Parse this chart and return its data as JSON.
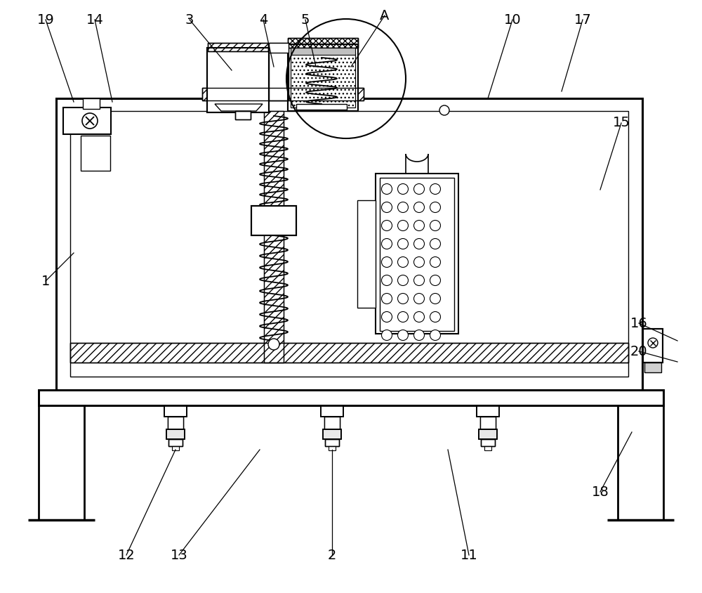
{
  "fig_width": 10.0,
  "fig_height": 8.44,
  "bg_color": "#ffffff",
  "annotations": [
    [
      "19",
      65,
      28,
      105,
      145
    ],
    [
      "14",
      135,
      28,
      160,
      145
    ],
    [
      "3",
      270,
      28,
      330,
      100
    ],
    [
      "4",
      375,
      28,
      390,
      95
    ],
    [
      "5",
      435,
      28,
      450,
      95
    ],
    [
      "A",
      548,
      22,
      500,
      95
    ],
    [
      "10",
      730,
      28,
      695,
      140
    ],
    [
      "17",
      830,
      28,
      800,
      130
    ],
    [
      "15",
      885,
      175,
      855,
      270
    ],
    [
      "1",
      65,
      400,
      105,
      360
    ],
    [
      "16",
      910,
      460,
      965,
      485
    ],
    [
      "20",
      910,
      500,
      965,
      515
    ],
    [
      "18",
      855,
      700,
      900,
      615
    ],
    [
      "12",
      180,
      790,
      250,
      640
    ],
    [
      "13",
      255,
      790,
      370,
      640
    ],
    [
      "2",
      473,
      790,
      473,
      640
    ],
    [
      "11",
      668,
      790,
      638,
      640
    ]
  ]
}
